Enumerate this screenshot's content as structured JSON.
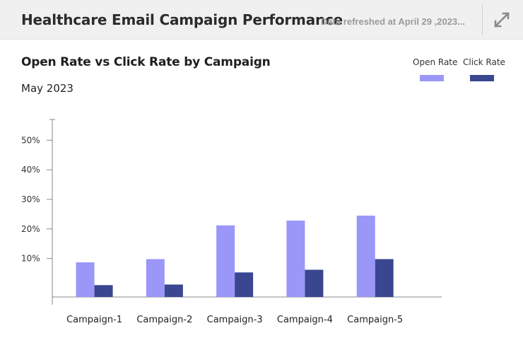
{
  "header": {
    "title": "Healthcare Email Campaign Performance",
    "refresh_text": "Data refreshed at April 29 ,2023...",
    "expand_icon": "expand-icon"
  },
  "chart_data": {
    "type": "bar",
    "title": "Open Rate vs Click Rate by Campaign",
    "subtitle": "May 2023",
    "categories": [
      "Campaign-1",
      "Campaign-2",
      "Campaign-3",
      "Campaign-4",
      "Campaign-5"
    ],
    "series": [
      {
        "name": "Open Rate",
        "color": "#9a97f9",
        "values": [
          8.7,
          9.8,
          21.2,
          22.8,
          24.5
        ]
      },
      {
        "name": "Click Rate",
        "color": "#3a4790",
        "values": [
          1.0,
          1.2,
          5.3,
          6.2,
          9.8
        ]
      }
    ],
    "yticks": [
      "10%",
      "20%",
      "30%",
      "40%",
      "50%"
    ],
    "ytick_values": [
      10,
      20,
      30,
      40,
      50
    ],
    "ylim": [
      -3,
      57
    ],
    "grid": false,
    "legend_position": "top-right"
  }
}
